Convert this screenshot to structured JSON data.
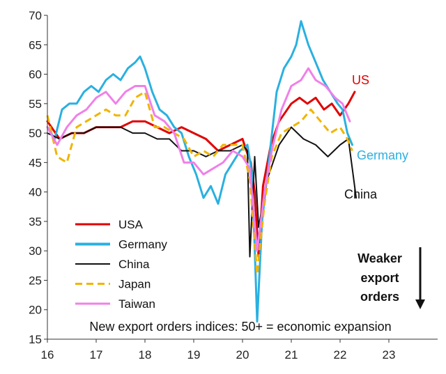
{
  "chart_data": {
    "type": "line",
    "title": "",
    "xlabel": "",
    "ylabel": "",
    "ylim": [
      15,
      70
    ],
    "xlim": [
      16,
      24
    ],
    "yticks": [
      "15",
      "20",
      "25",
      "30",
      "35",
      "40",
      "45",
      "50",
      "55",
      "60",
      "65",
      "70"
    ],
    "xticks": [
      "16",
      "17",
      "18",
      "19",
      "20",
      "21",
      "22",
      "23"
    ],
    "grid": false,
    "legend_position": "bottom-left",
    "note": "New export orders indices: 50+ = economic expansion",
    "weaker_label": [
      "Weaker",
      "export",
      "orders"
    ],
    "end_labels": [
      {
        "text": "US",
        "series": "USA",
        "color": "#e00000"
      },
      {
        "text": "Germany",
        "series": "Germany",
        "color": "#2ab0e0"
      },
      {
        "text": "China",
        "series": "China",
        "color": "#111111"
      }
    ],
    "series": [
      {
        "name": "USA",
        "color": "#e00000",
        "dash": "solid",
        "points": [
          [
            16.0,
            52
          ],
          [
            16.25,
            49
          ],
          [
            16.5,
            50
          ],
          [
            16.75,
            50
          ],
          [
            17.0,
            51
          ],
          [
            17.25,
            51
          ],
          [
            17.5,
            51
          ],
          [
            17.75,
            52
          ],
          [
            18.0,
            52
          ],
          [
            18.25,
            51
          ],
          [
            18.5,
            50
          ],
          [
            18.75,
            51
          ],
          [
            19.0,
            50
          ],
          [
            19.25,
            49
          ],
          [
            19.5,
            47
          ],
          [
            19.75,
            48
          ],
          [
            20.0,
            49
          ],
          [
            20.08,
            47
          ],
          [
            20.17,
            45
          ],
          [
            20.25,
            40
          ],
          [
            20.33,
            29
          ],
          [
            20.42,
            41
          ],
          [
            20.58,
            48
          ],
          [
            20.75,
            52
          ],
          [
            21.0,
            55
          ],
          [
            21.17,
            56
          ],
          [
            21.33,
            55
          ],
          [
            21.5,
            56
          ],
          [
            21.67,
            54
          ],
          [
            21.83,
            55
          ],
          [
            22.0,
            53
          ],
          [
            22.17,
            55
          ],
          [
            22.3,
            57
          ]
        ]
      },
      {
        "name": "Germany",
        "color": "#2ab0e0",
        "dash": "solid",
        "points": [
          [
            16.0,
            51
          ],
          [
            16.15,
            49
          ],
          [
            16.3,
            54
          ],
          [
            16.45,
            55
          ],
          [
            16.6,
            55
          ],
          [
            16.75,
            57
          ],
          [
            16.9,
            58
          ],
          [
            17.05,
            57
          ],
          [
            17.2,
            59
          ],
          [
            17.35,
            60
          ],
          [
            17.5,
            59
          ],
          [
            17.65,
            61
          ],
          [
            17.8,
            62
          ],
          [
            17.9,
            63
          ],
          [
            18.0,
            61
          ],
          [
            18.15,
            57
          ],
          [
            18.3,
            54
          ],
          [
            18.45,
            53
          ],
          [
            18.6,
            51
          ],
          [
            18.75,
            50
          ],
          [
            18.9,
            46
          ],
          [
            19.05,
            43
          ],
          [
            19.2,
            39
          ],
          [
            19.35,
            41
          ],
          [
            19.5,
            38
          ],
          [
            19.65,
            43
          ],
          [
            19.8,
            45
          ],
          [
            19.95,
            47
          ],
          [
            20.1,
            48
          ],
          [
            20.2,
            43
          ],
          [
            20.3,
            18
          ],
          [
            20.4,
            35
          ],
          [
            20.55,
            46
          ],
          [
            20.7,
            57
          ],
          [
            20.85,
            61
          ],
          [
            21.0,
            63
          ],
          [
            21.1,
            65
          ],
          [
            21.2,
            69
          ],
          [
            21.35,
            65
          ],
          [
            21.5,
            62
          ],
          [
            21.65,
            59
          ],
          [
            21.8,
            57
          ],
          [
            21.95,
            55
          ],
          [
            22.05,
            54
          ],
          [
            22.15,
            50
          ],
          [
            22.25,
            48
          ]
        ]
      },
      {
        "name": "China",
        "color": "#111111",
        "dash": "solid",
        "points": [
          [
            16.0,
            50
          ],
          [
            16.25,
            49
          ],
          [
            16.5,
            50
          ],
          [
            16.75,
            50
          ],
          [
            17.0,
            51
          ],
          [
            17.25,
            51
          ],
          [
            17.5,
            51
          ],
          [
            17.75,
            50
          ],
          [
            18.0,
            50
          ],
          [
            18.25,
            49
          ],
          [
            18.5,
            49
          ],
          [
            18.75,
            47
          ],
          [
            19.0,
            47
          ],
          [
            19.25,
            46
          ],
          [
            19.5,
            47
          ],
          [
            19.75,
            47
          ],
          [
            20.0,
            48
          ],
          [
            20.1,
            47
          ],
          [
            20.15,
            29
          ],
          [
            20.25,
            46
          ],
          [
            20.33,
            34
          ],
          [
            20.5,
            42
          ],
          [
            20.75,
            48
          ],
          [
            21.0,
            51
          ],
          [
            21.25,
            49
          ],
          [
            21.5,
            48
          ],
          [
            21.75,
            46
          ],
          [
            22.0,
            48
          ],
          [
            22.17,
            49
          ],
          [
            22.25,
            44
          ],
          [
            22.33,
            39
          ]
        ]
      },
      {
        "name": "Japan",
        "color": "#f0b400",
        "dash": "dashed",
        "points": [
          [
            16.0,
            53
          ],
          [
            16.2,
            46
          ],
          [
            16.4,
            45
          ],
          [
            16.6,
            51
          ],
          [
            16.8,
            52
          ],
          [
            17.0,
            53
          ],
          [
            17.2,
            54
          ],
          [
            17.4,
            53
          ],
          [
            17.6,
            53
          ],
          [
            17.8,
            56
          ],
          [
            18.0,
            57
          ],
          [
            18.2,
            51
          ],
          [
            18.4,
            51
          ],
          [
            18.6,
            50
          ],
          [
            18.8,
            49
          ],
          [
            19.0,
            46
          ],
          [
            19.2,
            47
          ],
          [
            19.4,
            46
          ],
          [
            19.6,
            48
          ],
          [
            19.8,
            48
          ],
          [
            20.0,
            48
          ],
          [
            20.15,
            42
          ],
          [
            20.3,
            26
          ],
          [
            20.45,
            38
          ],
          [
            20.6,
            46
          ],
          [
            20.8,
            50
          ],
          [
            21.0,
            51
          ],
          [
            21.2,
            52
          ],
          [
            21.4,
            54
          ],
          [
            21.6,
            52
          ],
          [
            21.8,
            50
          ],
          [
            22.0,
            51
          ],
          [
            22.15,
            49
          ],
          [
            22.25,
            47
          ]
        ]
      },
      {
        "name": "Taiwan",
        "color": "#f080e8",
        "dash": "solid",
        "points": [
          [
            16.0,
            51
          ],
          [
            16.2,
            48
          ],
          [
            16.4,
            51
          ],
          [
            16.6,
            53
          ],
          [
            16.8,
            54
          ],
          [
            17.0,
            56
          ],
          [
            17.2,
            57
          ],
          [
            17.4,
            55
          ],
          [
            17.6,
            57
          ],
          [
            17.8,
            58
          ],
          [
            18.0,
            58
          ],
          [
            18.2,
            53
          ],
          [
            18.4,
            52
          ],
          [
            18.6,
            50
          ],
          [
            18.8,
            45
          ],
          [
            19.0,
            45
          ],
          [
            19.2,
            43
          ],
          [
            19.4,
            44
          ],
          [
            19.6,
            45
          ],
          [
            19.8,
            47
          ],
          [
            20.0,
            46
          ],
          [
            20.15,
            44
          ],
          [
            20.3,
            30
          ],
          [
            20.45,
            40
          ],
          [
            20.6,
            47
          ],
          [
            20.8,
            54
          ],
          [
            21.0,
            58
          ],
          [
            21.2,
            59
          ],
          [
            21.35,
            61
          ],
          [
            21.5,
            59
          ],
          [
            21.7,
            58
          ],
          [
            21.9,
            56
          ],
          [
            22.05,
            55
          ],
          [
            22.2,
            52
          ]
        ]
      }
    ]
  }
}
